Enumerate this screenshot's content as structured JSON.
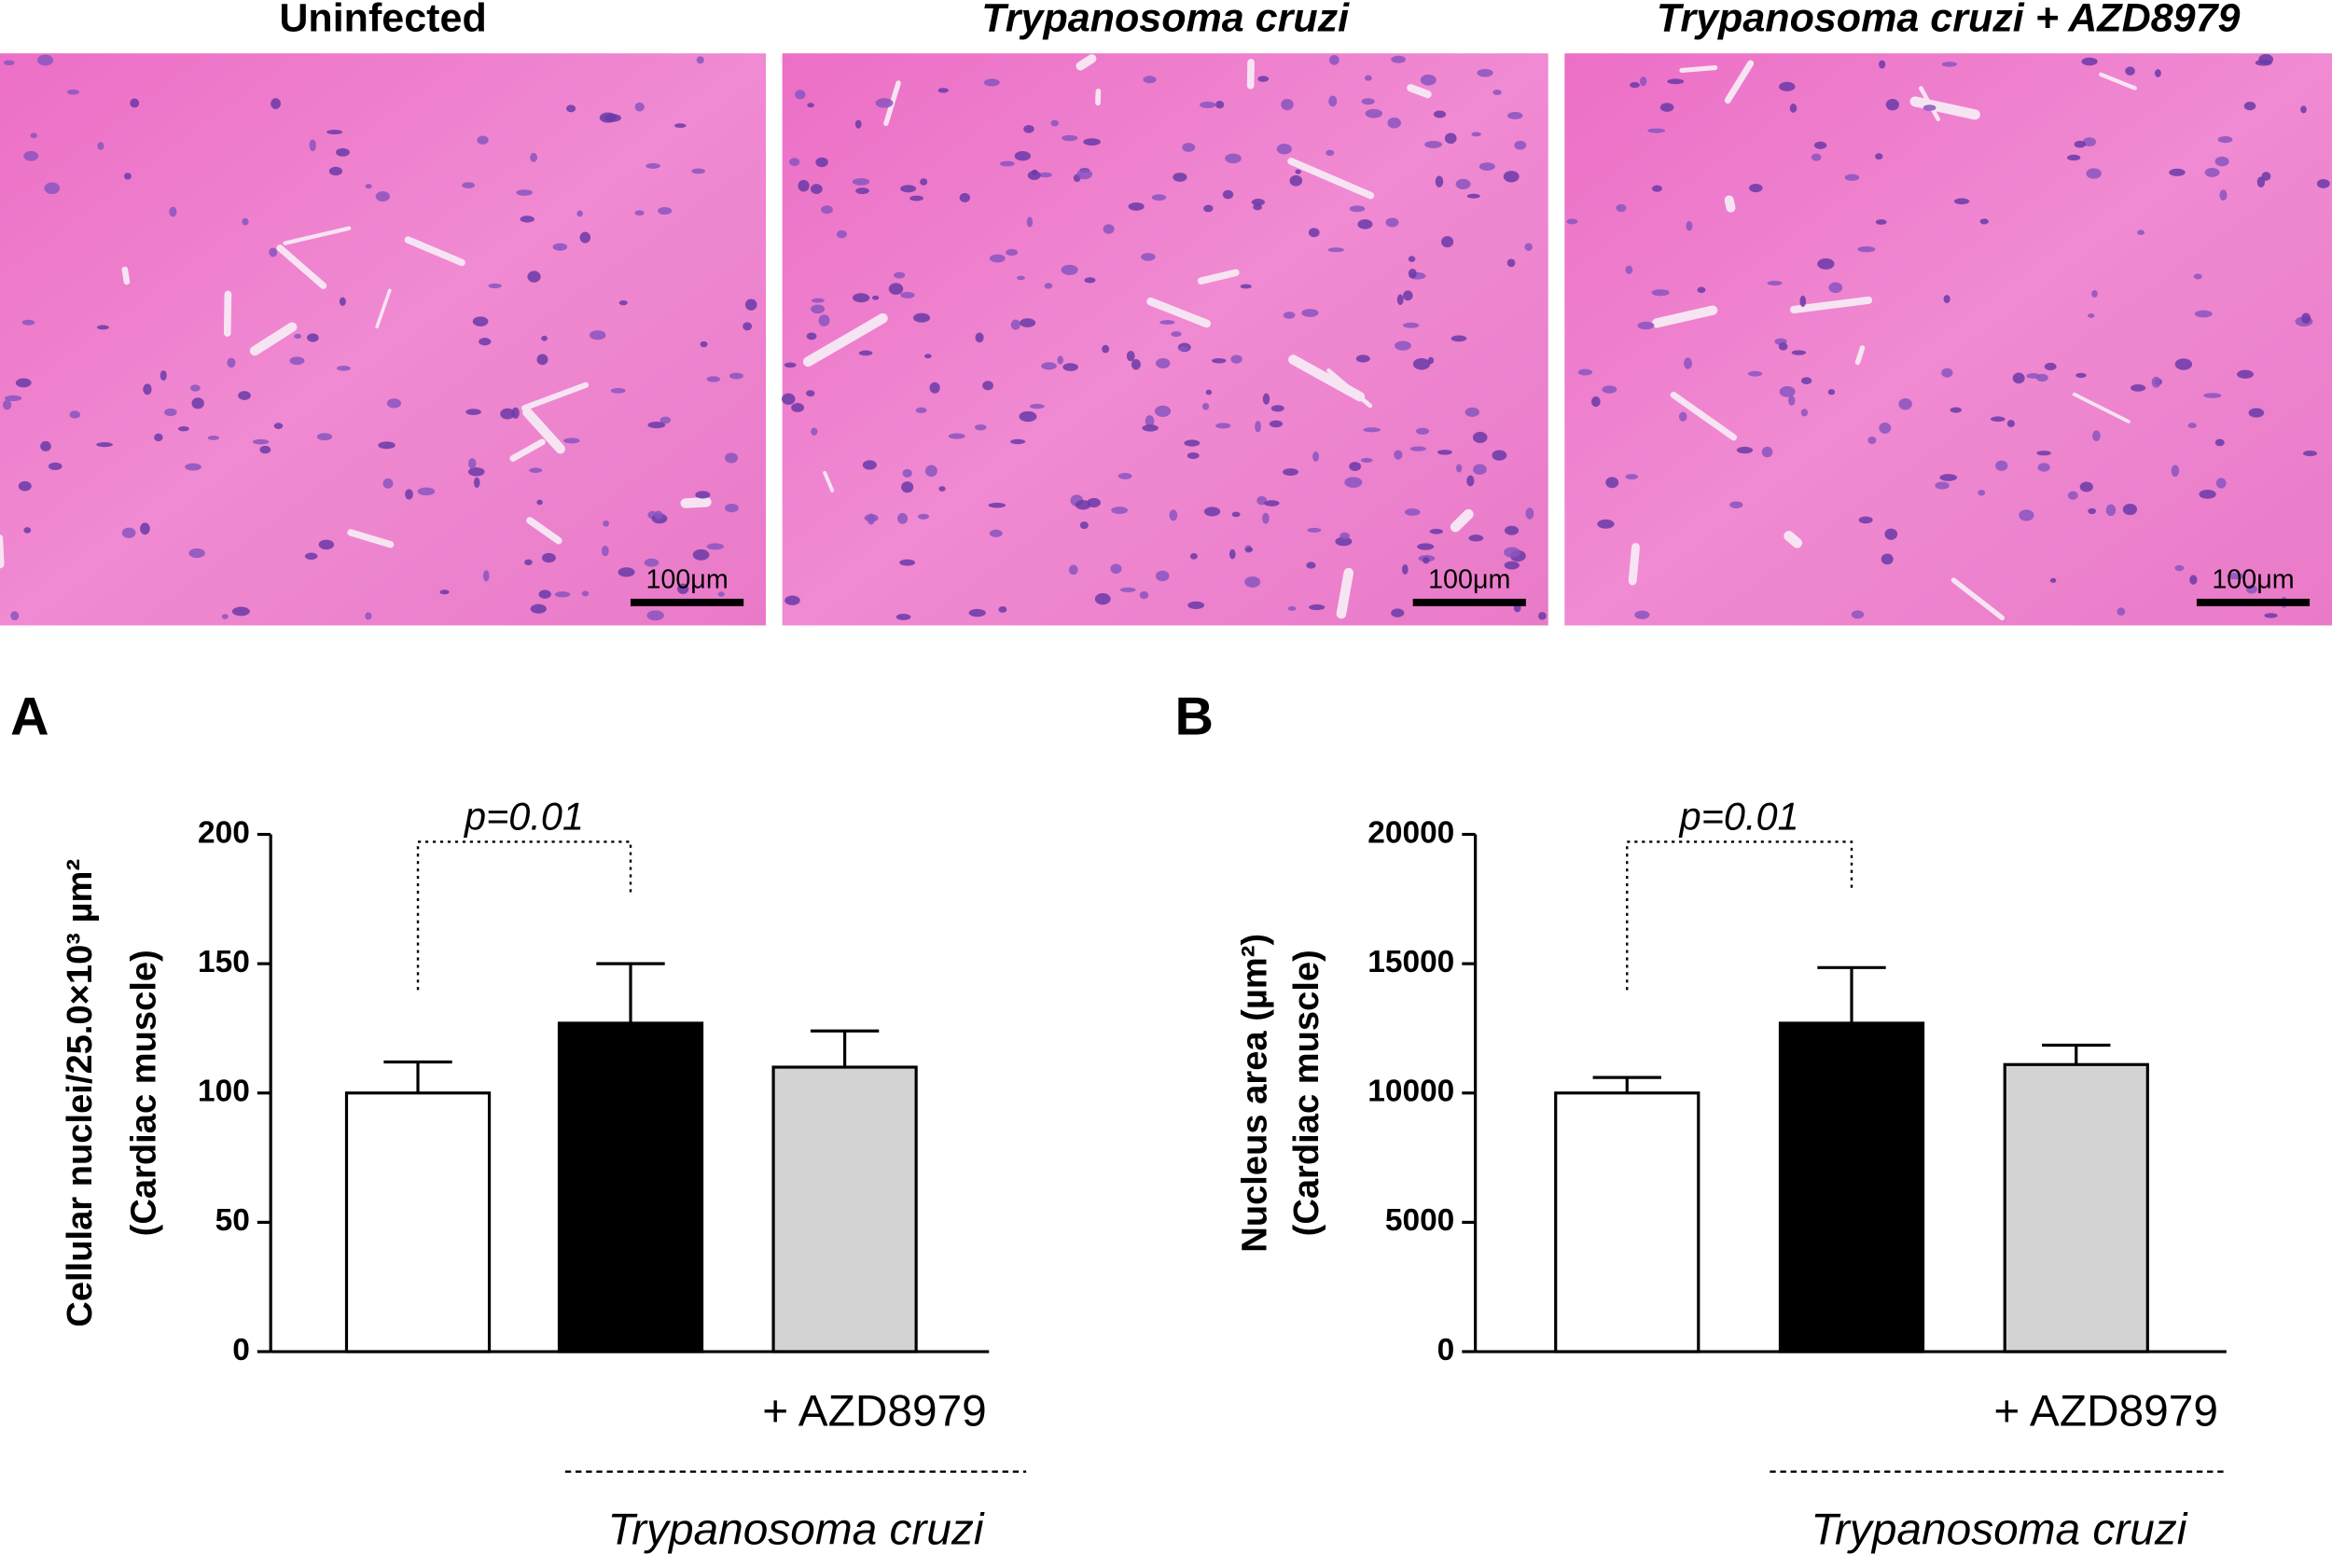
{
  "images": [
    {
      "title": "Uninfected",
      "scale_bar": "100μm"
    },
    {
      "title": "Trypanosoma cruzi",
      "scale_bar": "100μm"
    },
    {
      "title": "Trypanosoma cruzi + AZD8979",
      "scale_bar": "100μm"
    }
  ],
  "chart_data": [
    {
      "type": "bar",
      "panel": "A",
      "ylabel": [
        "Cellular nuclei/25.0×10³ µm²",
        "(Cardiac muscle)"
      ],
      "categories": [
        null,
        null,
        "+ AZD8979"
      ],
      "values": [
        100,
        127,
        110
      ],
      "errors": [
        12,
        23,
        14
      ],
      "colors": [
        "#ffffff",
        "#000000",
        "#d3d3d3"
      ],
      "ylim": [
        0,
        200
      ],
      "yticks": [
        0,
        50,
        100,
        150,
        200
      ],
      "annotation": "p=0.01",
      "group_label": "Trypanosoma cruzi"
    },
    {
      "type": "bar",
      "panel": "B",
      "ylabel": [
        "Nucleus area (µm²)",
        "(Cardiac muscle)"
      ],
      "categories": [
        null,
        null,
        "+ AZD8979"
      ],
      "values": [
        10000,
        12700,
        11100
      ],
      "errors": [
        600,
        2150,
        750
      ],
      "colors": [
        "#ffffff",
        "#000000",
        "#d3d3d3"
      ],
      "ylim": [
        0,
        20000
      ],
      "yticks": [
        0,
        5000,
        10000,
        15000,
        20000
      ],
      "annotation": "p=0.01",
      "group_label": "Trypanosoma cruzi"
    }
  ]
}
